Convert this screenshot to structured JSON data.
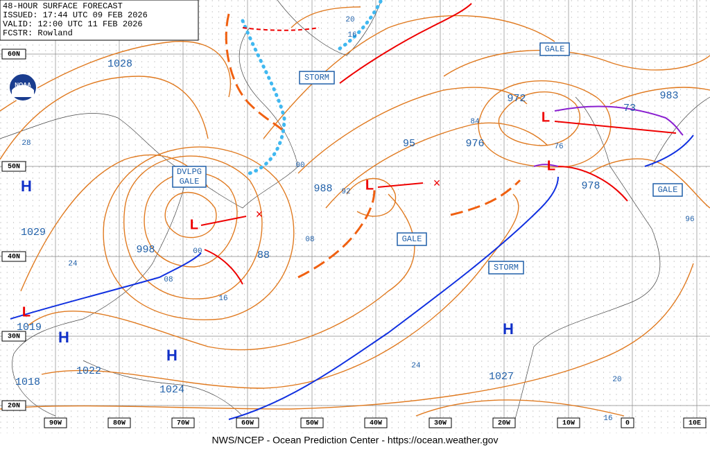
{
  "header": {
    "lines": [
      "48-HOUR SURFACE FORECAST",
      "ISSUED: 17:44 UTC 09 FEB 2026",
      "VALID: 12:00 UTC 11 FEB 2026",
      "FCSTR: Rowland"
    ]
  },
  "logo": "NOAA",
  "footer": "NWS/NCEP - Ocean Prediction Center - https://ocean.weather.gov",
  "lat_labels": [
    "60N",
    "50N",
    "40N",
    "30N",
    "20N"
  ],
  "lon_labels": [
    "90W",
    "80W",
    "70W",
    "60W",
    "50W",
    "40W",
    "30W",
    "20W",
    "10W",
    "0",
    "10E"
  ],
  "pressure_labels": [
    "1028",
    "1029",
    "998",
    "88",
    "988",
    "95",
    "976",
    "972",
    "983",
    "73",
    "978",
    "1027",
    "1022",
    "1018",
    "1024",
    "1019"
  ],
  "isobar_labels": [
    "28",
    "24",
    "08",
    "00",
    "16",
    "20",
    "16",
    "00",
    "92",
    "08",
    "84",
    "76",
    "96",
    "20",
    "16",
    "24"
  ],
  "highs": [
    "H",
    "H",
    "H",
    "H"
  ],
  "lows": [
    "L",
    "L",
    "L",
    "L",
    "L"
  ],
  "warnings": [
    "STORM",
    "GALE",
    "GALE",
    "STORM",
    "GALE"
  ],
  "dvlpg_gale": [
    "DVLPG",
    "GALE"
  ]
}
